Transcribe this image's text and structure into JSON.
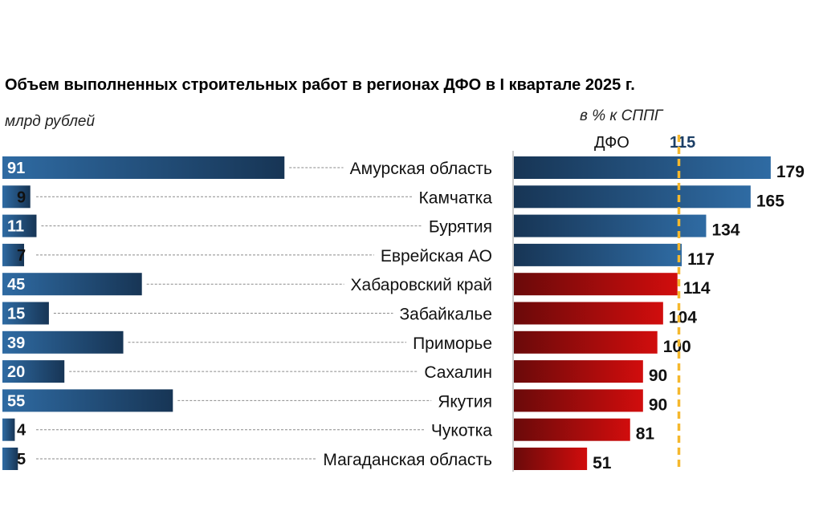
{
  "title": "Объем выполненных строительных работ в регионах ДФО в I квартале 2025 г.",
  "left_unit": "млрд рублей",
  "right_unit": "в % к СППГ",
  "reference": {
    "label": "ДФО",
    "value": 115,
    "color": "#f5b82e"
  },
  "colors": {
    "blue_dark": "#173555",
    "blue_light": "#2f6ba3",
    "red_dark": "#6a0a0a",
    "red_light": "#d10d0d",
    "ref_text": "#1c3f66"
  },
  "chart_data": [
    {
      "type": "bar",
      "orientation": "horizontal",
      "title": "Объем выполненных строительных работ в регионах ДФО в I квартале 2025 г.",
      "unit": "млрд рублей",
      "categories": [
        "Амурская область",
        "Камчатка",
        "Бурятия",
        "Еврейская АО",
        "Хабаровский край",
        "Забайкалье",
        "Приморье",
        "Сахалин",
        "Якутия",
        "Чукотка",
        "Магаданская область"
      ],
      "values": [
        91,
        9,
        11,
        7,
        45,
        15,
        39,
        20,
        55,
        4,
        5
      ]
    },
    {
      "type": "bar",
      "orientation": "horizontal",
      "unit": "в % к СППГ",
      "categories": [
        "Амурская область",
        "Камчатка",
        "Бурятия",
        "Еврейская АО",
        "Хабаровский край",
        "Забайкалье",
        "Приморье",
        "Сахалин",
        "Якутия",
        "Чукотка",
        "Магаданская область"
      ],
      "values": [
        179,
        165,
        134,
        117,
        114,
        104,
        100,
        90,
        90,
        81,
        51
      ],
      "reference_line": {
        "label": "ДФО",
        "value": 115
      }
    }
  ]
}
